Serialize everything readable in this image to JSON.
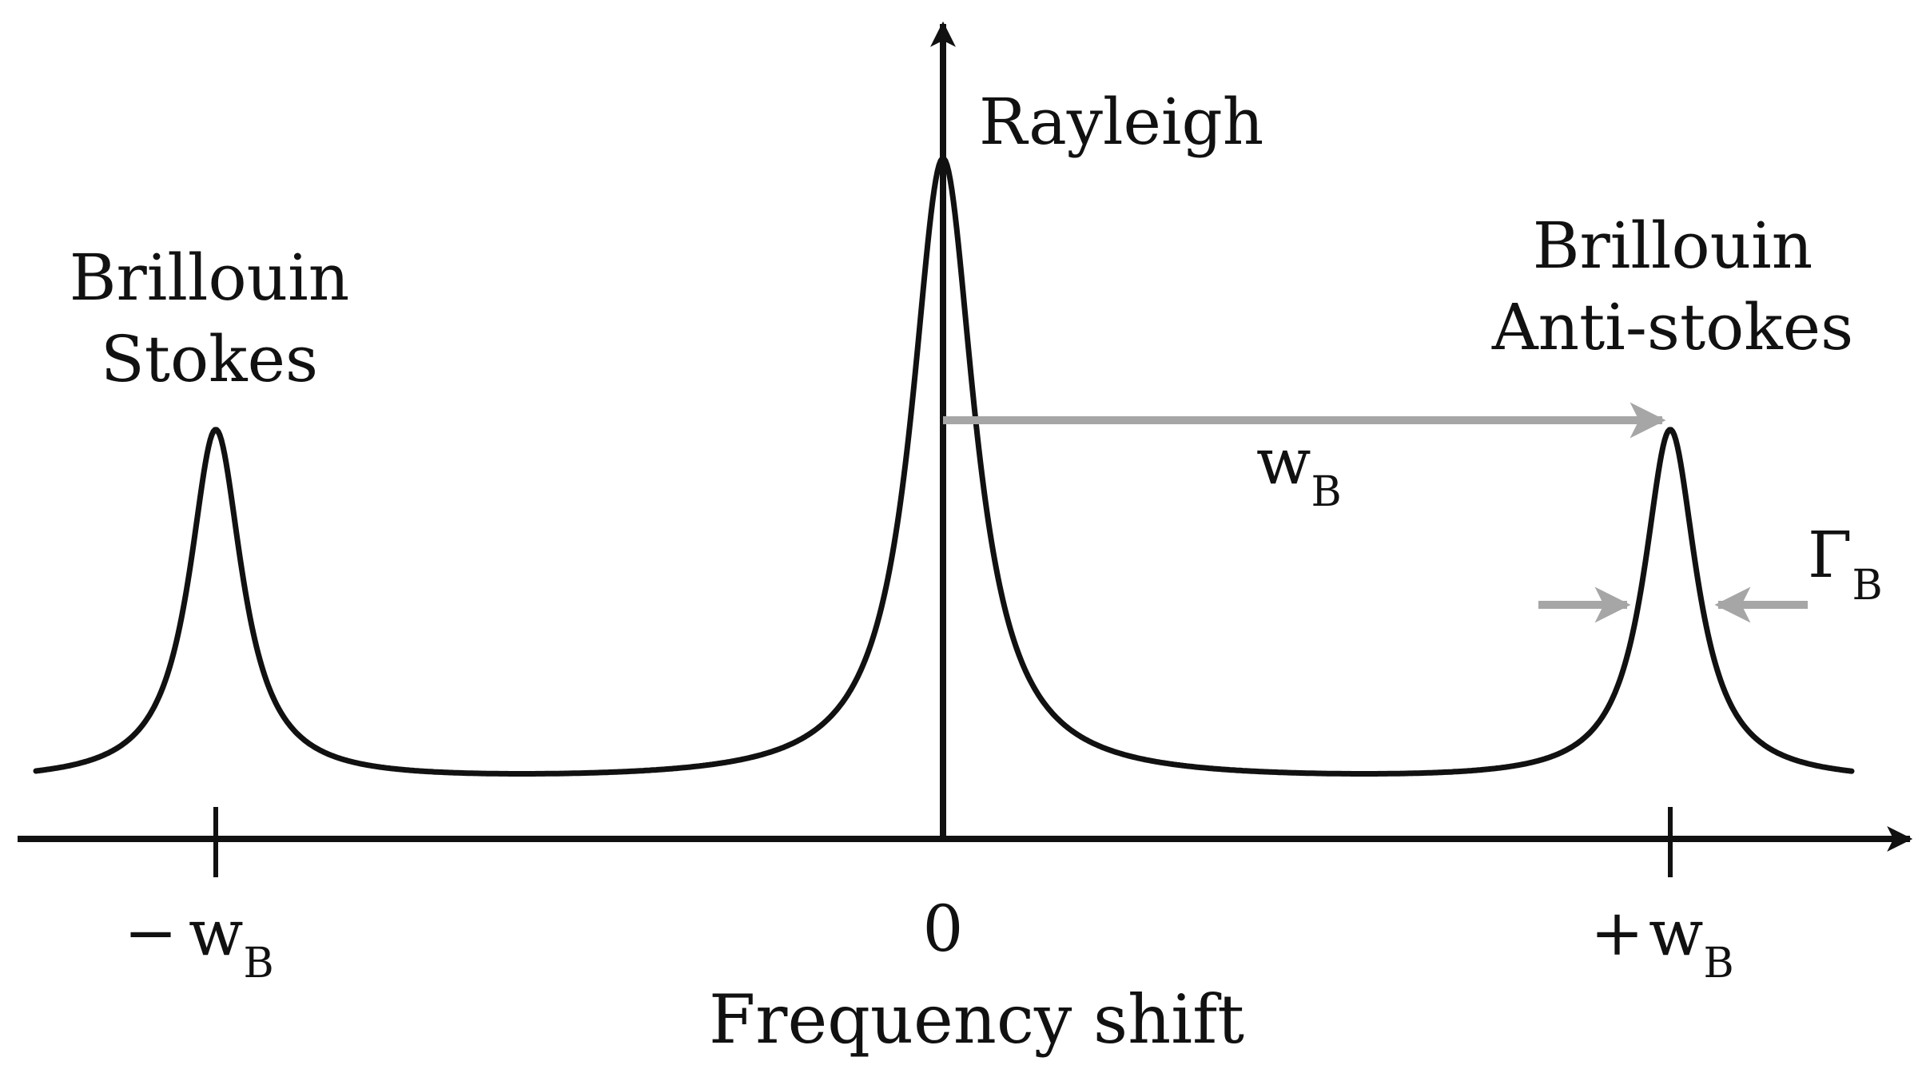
{
  "labels": {
    "rayleigh": "Rayleigh",
    "brillouin_stokes_line1": "Brillouin",
    "brillouin_stokes_line2": "Stokes",
    "brillouin_antistokes_line1": "Brillouin",
    "brillouin_antistokes_line2": "Anti-stokes",
    "shift_symbol": "w",
    "shift_subscript": "B",
    "width_symbol": "Γ",
    "width_subscript": "B",
    "x_axis_title": "Frequency shift"
  },
  "ticks": [
    {
      "prefix": "−",
      "symbol": "w",
      "subscript": "B"
    },
    {
      "prefix": "",
      "symbol": "0",
      "subscript": ""
    },
    {
      "prefix": "+",
      "symbol": "w",
      "subscript": "B"
    }
  ],
  "colors": {
    "curve": "#111111",
    "axis": "#111111",
    "annotation_arrow": "#a6a6a6"
  }
}
